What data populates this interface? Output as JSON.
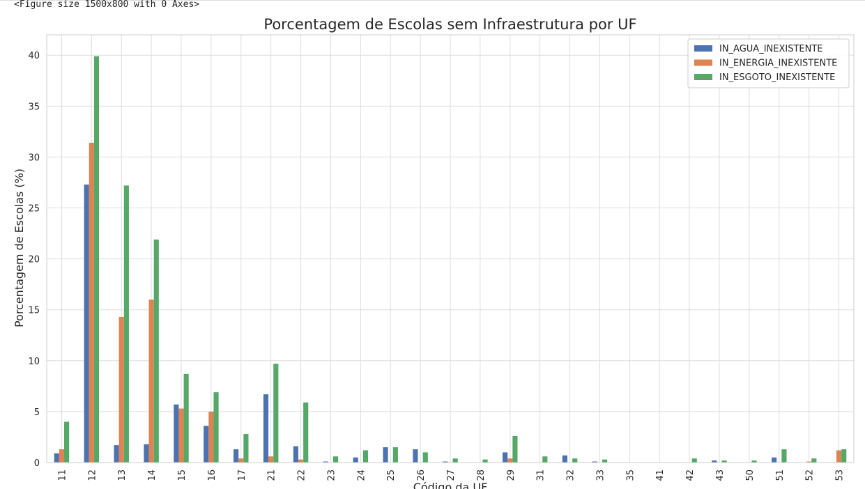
{
  "output_text": "<Figure size 1500x800 with 0 Axes>",
  "chart_data": {
    "type": "bar",
    "title": "Porcentagem de Escolas sem Infraestrutura por UF",
    "xlabel": "Código da UF",
    "ylabel": "Porcentagem de Escolas (%)",
    "ylim": [
      0,
      42
    ],
    "yticks": [
      0,
      5,
      10,
      15,
      20,
      25,
      30,
      35,
      40
    ],
    "grid": true,
    "legend_position": "top-right",
    "categories": [
      "11",
      "12",
      "13",
      "14",
      "15",
      "16",
      "17",
      "21",
      "22",
      "23",
      "24",
      "25",
      "26",
      "27",
      "28",
      "29",
      "31",
      "32",
      "33",
      "35",
      "41",
      "42",
      "43",
      "50",
      "51",
      "52",
      "53"
    ],
    "series": [
      {
        "name": "IN_AGUA_INEXISTENTE",
        "color": "#4c72b0",
        "values": [
          0.9,
          27.3,
          1.7,
          1.8,
          5.7,
          3.6,
          1.3,
          6.7,
          1.6,
          0.1,
          0.5,
          1.5,
          1.3,
          0.1,
          0.0,
          1.0,
          0.0,
          0.7,
          0.1,
          0.0,
          0.0,
          0.0,
          0.2,
          0.0,
          0.5,
          0.0,
          0.0
        ]
      },
      {
        "name": "IN_ENERGIA_INEXISTENTE",
        "color": "#dd8452",
        "values": [
          1.3,
          31.4,
          14.3,
          16.0,
          5.3,
          5.0,
          0.4,
          0.6,
          0.3,
          0.0,
          0.0,
          0.0,
          0.0,
          0.0,
          0.0,
          0.4,
          0.0,
          0.0,
          0.0,
          0.0,
          0.0,
          0.0,
          0.0,
          0.0,
          0.0,
          0.1,
          1.2
        ]
      },
      {
        "name": "IN_ESGOTO_INEXISTENTE",
        "color": "#55a868",
        "values": [
          4.0,
          39.9,
          27.2,
          21.9,
          8.7,
          6.9,
          2.8,
          9.7,
          5.9,
          0.6,
          1.2,
          1.5,
          1.0,
          0.4,
          0.3,
          2.6,
          0.6,
          0.4,
          0.3,
          0.0,
          0.0,
          0.4,
          0.2,
          0.2,
          1.3,
          0.4,
          1.3
        ]
      }
    ]
  }
}
